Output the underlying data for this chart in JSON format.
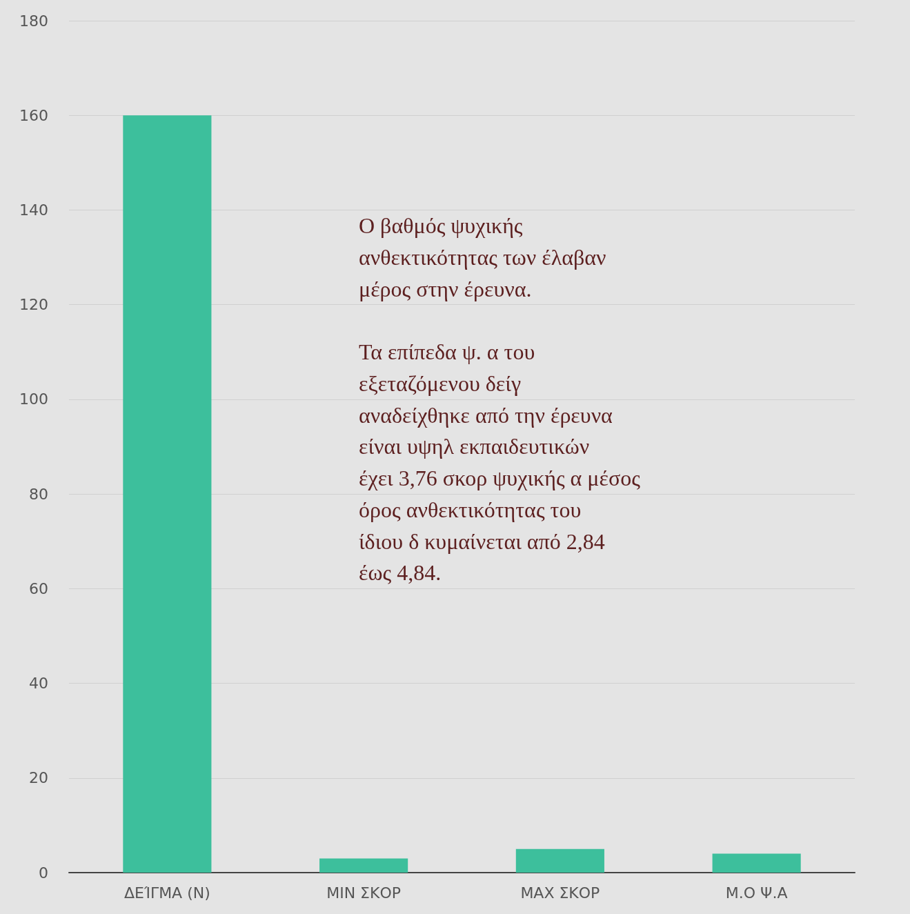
{
  "chart_data": {
    "type": "bar",
    "categories": [
      "ΔΕΊΓΜΑ (N)",
      "MIN ΣΚΟΡ",
      "MAX ΣΚΟΡ",
      "Μ.Ο Ψ.Α"
    ],
    "values": [
      160,
      3,
      5,
      4
    ],
    "color": "#3dbf9c",
    "ylim": [
      0,
      180
    ],
    "yticks": [
      0,
      20,
      40,
      60,
      80,
      100,
      120,
      140,
      160,
      180
    ],
    "grid": "y",
    "annotations": [
      "Ο βαθμός ψυχικής ανθεκτικότητας των έλαβαν μέρος στην έρευνα.",
      "Τα επίπεδα ψ. α του εξεταζόμενου δείγ αναδείχθηκε από την έρευνα είναι υψηλ εκπαιδευτικών έχει 3,76 σκορ ψυχικής α μέσος όρος ανθεκτικότητας του ίδιου δ κυμαίνεται από 2,84 έως 4,84."
    ]
  }
}
